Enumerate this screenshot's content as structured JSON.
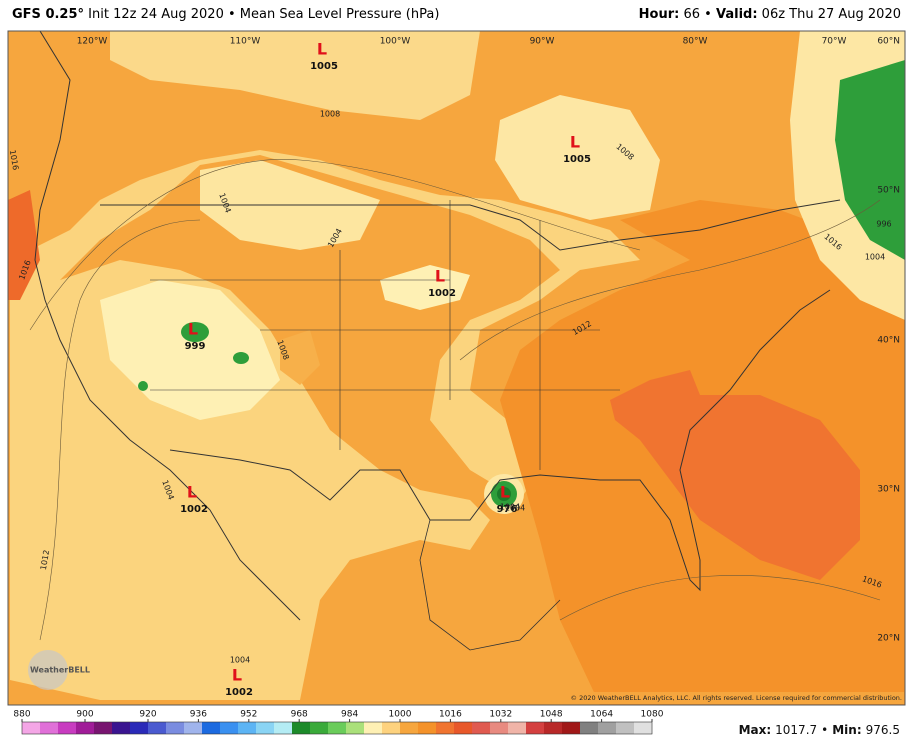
{
  "header": {
    "model": "GFS 0.25°",
    "init": "Init 12z 24 Aug 2020",
    "separator": "•",
    "field": "Mean Sea Level Pressure (hPa)",
    "hour_label": "Hour:",
    "hour": "66",
    "valid_label": "Valid:",
    "valid": "06z Thu 27 Aug 2020"
  },
  "map": {
    "longitude_labels": [
      "120°W",
      "110°W",
      "100°W",
      "90°W",
      "80°W",
      "70°W"
    ],
    "latitude_labels": [
      "60°N",
      "50°N",
      "40°N",
      "30°N",
      "20°N"
    ],
    "lows": [
      {
        "symbol": "L",
        "value": "1005"
      },
      {
        "symbol": "L",
        "value": "1005"
      },
      {
        "symbol": "L",
        "value": "1002"
      },
      {
        "symbol": "L",
        "value": "999"
      },
      {
        "symbol": "L",
        "value": "1002"
      },
      {
        "symbol": "L",
        "value": "1002"
      },
      {
        "symbol": "L",
        "value": "976"
      }
    ],
    "contour_labels": [
      "1008",
      "1008",
      "1016",
      "1016",
      "1004",
      "1004",
      "1008",
      "1012",
      "1004",
      "1012",
      "1016",
      "1004",
      "1004",
      "1004",
      "1016",
      "996",
      "1004"
    ],
    "copyright": "© 2020 WeatherBELL Analytics, LLC. All rights reserved. License required for commercial distribution.",
    "logo": "WeatherBELL"
  },
  "colorbar": {
    "ticks": [
      880,
      900,
      920,
      936,
      952,
      968,
      984,
      1000,
      1016,
      1032,
      1048,
      1064,
      1080
    ]
  },
  "footer": {
    "max_label": "Max:",
    "max": 1017.7,
    "separator": "•",
    "min_label": "Min:",
    "min": 976.5
  }
}
